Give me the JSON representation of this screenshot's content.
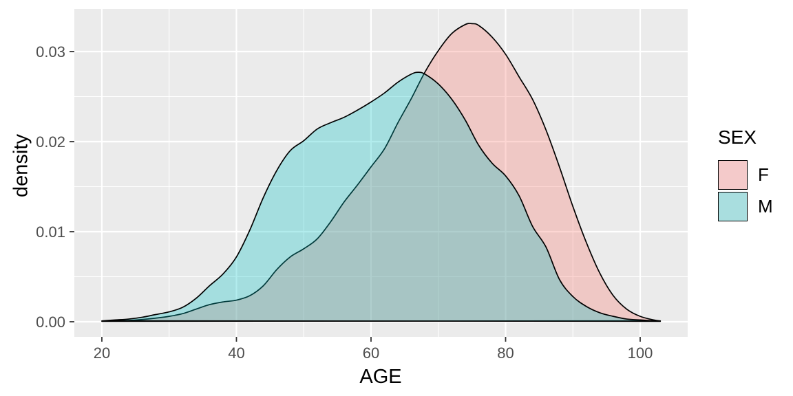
{
  "chart_data": {
    "type": "area",
    "subtype": "kernel-density",
    "title": "",
    "xlabel": "AGE",
    "ylabel": "density",
    "x_domain": [
      15.91,
      107.06
    ],
    "y_domain": [
      -0.001679,
      0.034732
    ],
    "x_ticks": [
      20,
      40,
      60,
      80,
      100
    ],
    "y_ticks": [
      {
        "value": 0.0,
        "label": "0.00"
      },
      {
        "value": 0.01,
        "label": "0.01"
      },
      {
        "value": 0.02,
        "label": "0.02"
      },
      {
        "value": 0.03,
        "label": "0.03"
      }
    ],
    "x_minor_gridlines": [
      30,
      50,
      70,
      90
    ],
    "y_minor_gridlines": [
      0.005,
      0.015,
      0.025
    ],
    "grid": "on",
    "panel_background": "#EBEBEB",
    "gridline_color": "#FFFFFF",
    "tick_color": "#333333",
    "tick_label_color": "#4D4D4D",
    "legend": {
      "title": "SEX",
      "position": "right",
      "entries": [
        {
          "label": "F",
          "key_fill": "#F4CACA"
        },
        {
          "label": "M",
          "key_fill": "#A9DEDF"
        }
      ]
    },
    "series": [
      {
        "name": "F",
        "base_color": "#F8766D",
        "fill_rgba": "rgba(248,118,109,0.30)",
        "stroke": "#000000",
        "peak": {
          "x": 75,
          "y": 0.0331
        },
        "points": [
          [
            20,
            5e-05
          ],
          [
            22,
            0.0001
          ],
          [
            24,
            0.00015
          ],
          [
            26,
            0.00025
          ],
          [
            28,
            0.0004
          ],
          [
            30,
            0.0006
          ],
          [
            32,
            0.0009
          ],
          [
            34,
            0.0014
          ],
          [
            36,
            0.0019
          ],
          [
            38,
            0.0022
          ],
          [
            40,
            0.0024
          ],
          [
            42,
            0.0029
          ],
          [
            44,
            0.004
          ],
          [
            46,
            0.0058
          ],
          [
            48,
            0.0072
          ],
          [
            50,
            0.0081
          ],
          [
            52,
            0.0092
          ],
          [
            54,
            0.0111
          ],
          [
            56,
            0.0133
          ],
          [
            58,
            0.0152
          ],
          [
            60,
            0.0172
          ],
          [
            62,
            0.0192
          ],
          [
            64,
            0.0221
          ],
          [
            66,
            0.0248
          ],
          [
            68,
            0.0277
          ],
          [
            70,
            0.0301
          ],
          [
            72,
            0.032
          ],
          [
            74,
            0.033
          ],
          [
            75,
            0.0331
          ],
          [
            76,
            0.0329
          ],
          [
            78,
            0.0316
          ],
          [
            80,
            0.0297
          ],
          [
            82,
            0.0272
          ],
          [
            84,
            0.0247
          ],
          [
            86,
            0.0213
          ],
          [
            88,
            0.0172
          ],
          [
            90,
            0.0128
          ],
          [
            92,
            0.0088
          ],
          [
            94,
            0.0054
          ],
          [
            96,
            0.0029
          ],
          [
            98,
            0.0014
          ],
          [
            100,
            0.0006
          ],
          [
            102,
            0.0002
          ],
          [
            103,
            0.0001
          ]
        ]
      },
      {
        "name": "M",
        "base_color": "#00BFC4",
        "fill_rgba": "rgba(0,191,196,0.30)",
        "stroke": "#000000",
        "peak": {
          "x": 67,
          "y": 0.0277
        },
        "points": [
          [
            20,
            0.0001
          ],
          [
            22,
            0.0002
          ],
          [
            24,
            0.0003
          ],
          [
            26,
            0.0005
          ],
          [
            28,
            0.0008
          ],
          [
            30,
            0.0011
          ],
          [
            32,
            0.0016
          ],
          [
            34,
            0.0026
          ],
          [
            36,
            0.004
          ],
          [
            38,
            0.0053
          ],
          [
            40,
            0.0072
          ],
          [
            42,
            0.0102
          ],
          [
            44,
            0.0138
          ],
          [
            46,
            0.0168
          ],
          [
            48,
            0.019
          ],
          [
            50,
            0.0201
          ],
          [
            52,
            0.0214
          ],
          [
            54,
            0.0221
          ],
          [
            56,
            0.0227
          ],
          [
            58,
            0.0235
          ],
          [
            60,
            0.0244
          ],
          [
            62,
            0.0254
          ],
          [
            64,
            0.0266
          ],
          [
            66,
            0.0275
          ],
          [
            67,
            0.0277
          ],
          [
            68,
            0.0275
          ],
          [
            70,
            0.0264
          ],
          [
            72,
            0.0247
          ],
          [
            74,
            0.0224
          ],
          [
            76,
            0.0196
          ],
          [
            78,
            0.0176
          ],
          [
            80,
            0.0162
          ],
          [
            82,
            0.014
          ],
          [
            84,
            0.0106
          ],
          [
            86,
            0.0083
          ],
          [
            88,
            0.0047
          ],
          [
            90,
            0.0028
          ],
          [
            92,
            0.0017
          ],
          [
            94,
            0.001
          ],
          [
            96,
            0.0006
          ],
          [
            98,
            0.0003
          ],
          [
            100,
            0.0002
          ],
          [
            102,
            0.0001
          ],
          [
            103,
            5e-05
          ]
        ]
      }
    ]
  }
}
